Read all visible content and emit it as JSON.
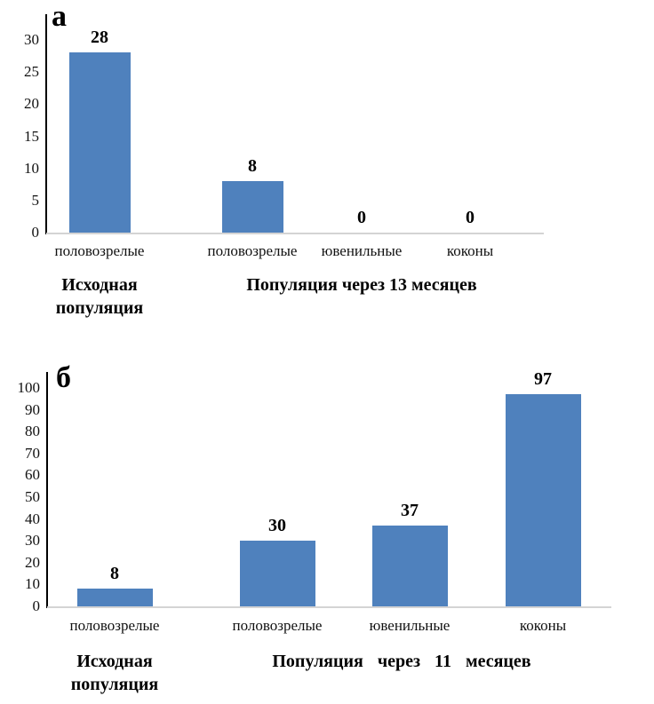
{
  "page": {
    "background": "#ffffff",
    "text_color": "#000000"
  },
  "chart_data": [
    {
      "id": "a",
      "type": "bar",
      "panel_label": "а",
      "title": "",
      "bar_color": "#4F81BD",
      "categories": [
        "половозрелые",
        "половозрелые",
        "ювенильные",
        "коконы"
      ],
      "values": [
        28,
        8,
        0,
        0
      ],
      "groups": [
        {
          "label_lines": [
            "Исходная",
            "популяция"
          ]
        },
        {
          "label_lines": [
            "Популяция через 13 месяцев"
          ]
        }
      ],
      "xlabel": "",
      "ylabel": "",
      "ylim": [
        0,
        30
      ],
      "yticks": [
        0,
        5,
        10,
        15,
        20,
        25,
        30
      ],
      "grid": false,
      "legend": false
    },
    {
      "id": "b",
      "type": "bar",
      "panel_label": "б",
      "title": "",
      "bar_color": "#4F81BD",
      "categories": [
        "половозрелые",
        "половозрелые",
        "ювенильные",
        "коконы"
      ],
      "values": [
        8,
        30,
        37,
        97
      ],
      "groups": [
        {
          "label_lines": [
            "Исходная",
            "популяция"
          ]
        },
        {
          "label_lines": [
            "Популяция  через  11  месяцев"
          ]
        }
      ],
      "xlabel": "",
      "ylabel": "",
      "ylim": [
        0,
        100
      ],
      "yticks": [
        0,
        10,
        20,
        30,
        40,
        50,
        60,
        70,
        80,
        90,
        100
      ],
      "grid": false,
      "legend": false
    }
  ]
}
